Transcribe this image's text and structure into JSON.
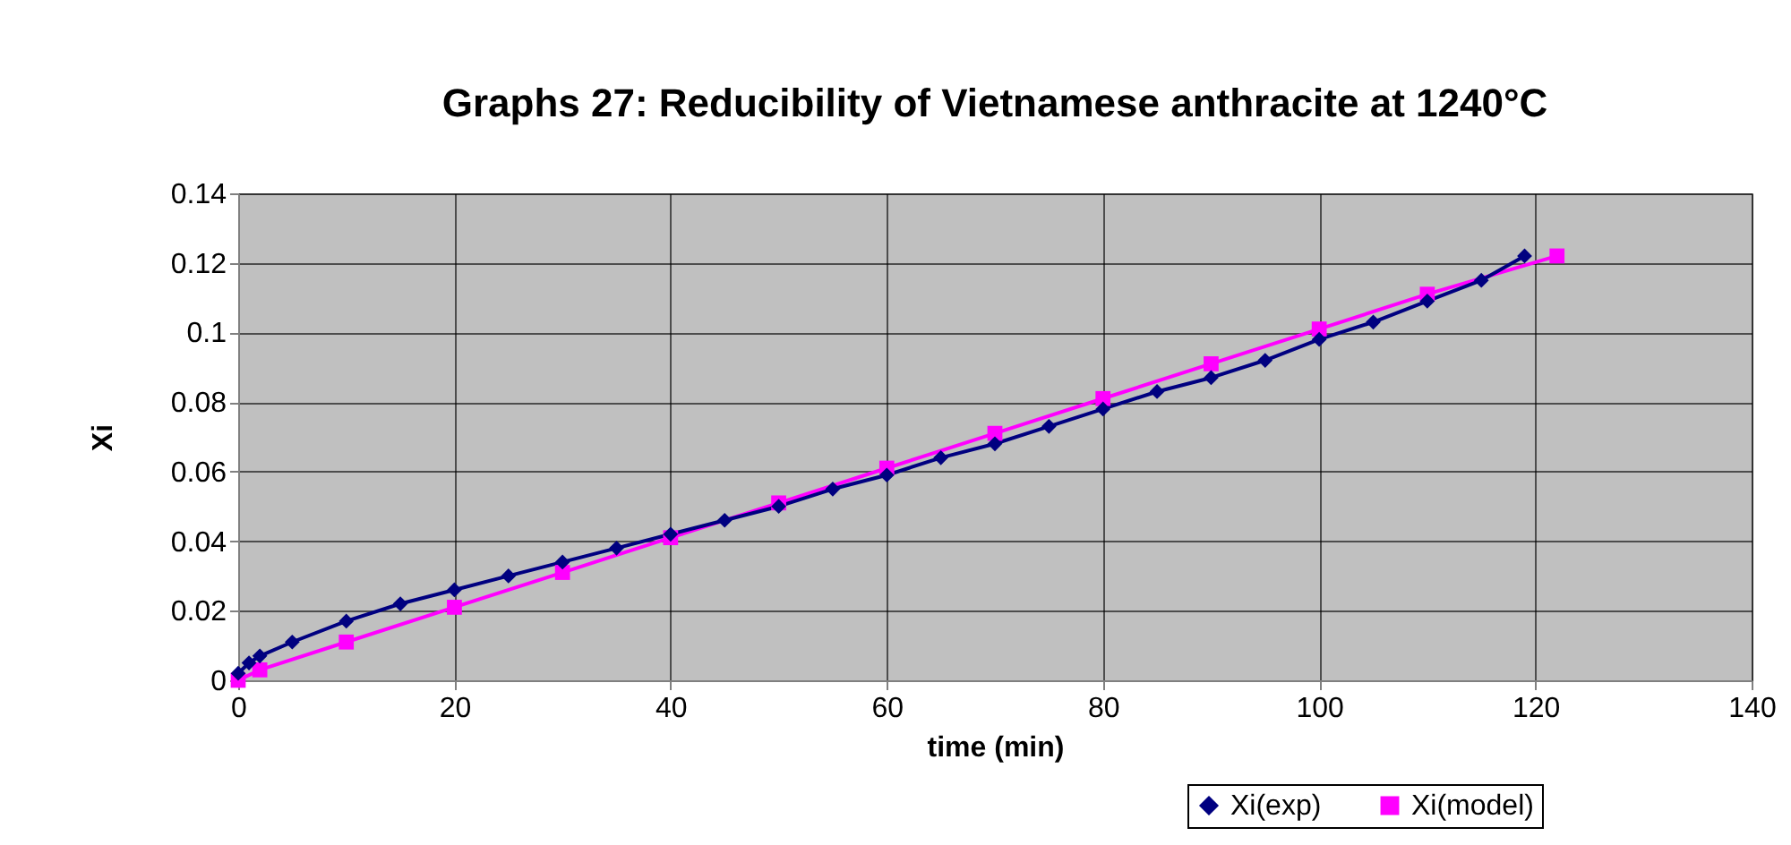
{
  "chart_data": {
    "type": "line",
    "title": "Graphs 27: Reducibility of Vietnamese anthracite at 1240°C",
    "xlabel": "time (min)",
    "ylabel": "Xi",
    "series": [
      {
        "name": "Xi(exp)",
        "color": "#000080",
        "marker": "diamond",
        "x": [
          0,
          1,
          2,
          5,
          10,
          15,
          20,
          25,
          30,
          35,
          40,
          45,
          50,
          55,
          60,
          65,
          70,
          75,
          80,
          85,
          90,
          95,
          100,
          105,
          110,
          115,
          119
        ],
        "values": [
          0.002,
          0.005,
          0.007,
          0.011,
          0.017,
          0.022,
          0.026,
          0.03,
          0.034,
          0.038,
          0.042,
          0.046,
          0.05,
          0.055,
          0.059,
          0.064,
          0.068,
          0.073,
          0.078,
          0.083,
          0.087,
          0.092,
          0.098,
          0.103,
          0.109,
          0.115,
          0.122
        ]
      },
      {
        "name": "Xi(model)",
        "color": "#ff00ff",
        "marker": "square",
        "x": [
          0,
          2,
          10,
          20,
          30,
          40,
          50,
          60,
          70,
          80,
          90,
          100,
          110,
          122
        ],
        "values": [
          0,
          0.003,
          0.011,
          0.021,
          0.031,
          0.041,
          0.051,
          0.061,
          0.071,
          0.081,
          0.091,
          0.101,
          0.111,
          0.122
        ]
      }
    ],
    "xlim": [
      0,
      140
    ],
    "xticks": [
      0,
      20,
      40,
      60,
      80,
      100,
      120,
      140
    ],
    "ylim": [
      0,
      0.14
    ],
    "yticks": [
      0,
      0.02,
      0.04,
      0.06,
      0.08,
      0.1,
      0.12,
      0.14
    ],
    "grid": true,
    "legend": "bottom right",
    "line_style": "solid"
  }
}
